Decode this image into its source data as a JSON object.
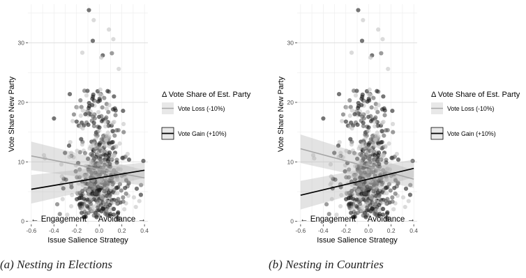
{
  "chart_data": [
    {
      "type": "scatter",
      "caption": "(a) Nesting in Elections",
      "xlabel": "Issue Salience Strategy",
      "ylabel": "Vote Share New Party",
      "xlim": [
        -0.63,
        0.43
      ],
      "ylim": [
        -0.5,
        36.5
      ],
      "xticks": [
        "-0.6",
        "-0.4",
        "-0.2",
        "0.0",
        "0.2",
        "0.4"
      ],
      "yticks": [
        "0",
        "10",
        "20",
        "30"
      ],
      "annotations": [
        "← Engagement",
        "Avoidance →"
      ],
      "grid": true,
      "legend": {
        "title": "Δ Vote Share of Est. Party",
        "placement": "right",
        "items": [
          "Vote Loss (-10%)",
          "Vote Gain (+10%)"
        ]
      },
      "series": [
        {
          "name": "Vote Loss (-10%)",
          "color": "#a6a6a6",
          "x": [
            -0.6,
            0.4
          ],
          "y": [
            11.0,
            7.3
          ],
          "ci_low_at_ends": [
            8.6,
            6.0
          ],
          "ci_high_at_ends": [
            13.4,
            8.6
          ]
        },
        {
          "name": "Vote Gain (+10%)",
          "color": "#000000",
          "x": [
            -0.6,
            0.4
          ],
          "y": [
            5.4,
            8.6
          ],
          "ci_low_at_ends": [
            3.0,
            7.3
          ],
          "ci_high_at_ends": [
            7.8,
            9.9
          ]
        }
      ]
    },
    {
      "type": "scatter",
      "caption": "(b) Nesting in Countries",
      "xlabel": "Issue Salience Strategy",
      "ylabel": "Vote Share New Party",
      "xlim": [
        -0.63,
        0.43
      ],
      "ylim": [
        -0.5,
        36.5
      ],
      "xticks": [
        "-0.6",
        "-0.4",
        "-0.2",
        "0.0",
        "0.2",
        "0.4"
      ],
      "yticks": [
        "0",
        "10",
        "20",
        "30"
      ],
      "annotations": [
        "← Engagement",
        "Avoidance →"
      ],
      "grid": true,
      "legend": {
        "title": "Δ Vote Share of Est. Party",
        "placement": "right",
        "items": [
          "Vote Loss (-10%)",
          "Vote Gain (+10%)"
        ]
      },
      "series": [
        {
          "name": "Vote Loss (-10%)",
          "color": "#a6a6a6",
          "x": [
            -0.6,
            0.4
          ],
          "y": [
            12.2,
            7.1
          ],
          "ci_low_at_ends": [
            9.8,
            5.6
          ],
          "ci_high_at_ends": [
            14.6,
            8.6
          ]
        },
        {
          "name": "Vote Gain (+10%)",
          "color": "#000000",
          "x": [
            -0.6,
            0.4
          ],
          "y": [
            4.4,
            8.9
          ],
          "ci_low_at_ends": [
            2.0,
            7.4
          ],
          "ci_high_at_ends": [
            6.8,
            10.4
          ]
        }
      ]
    }
  ]
}
